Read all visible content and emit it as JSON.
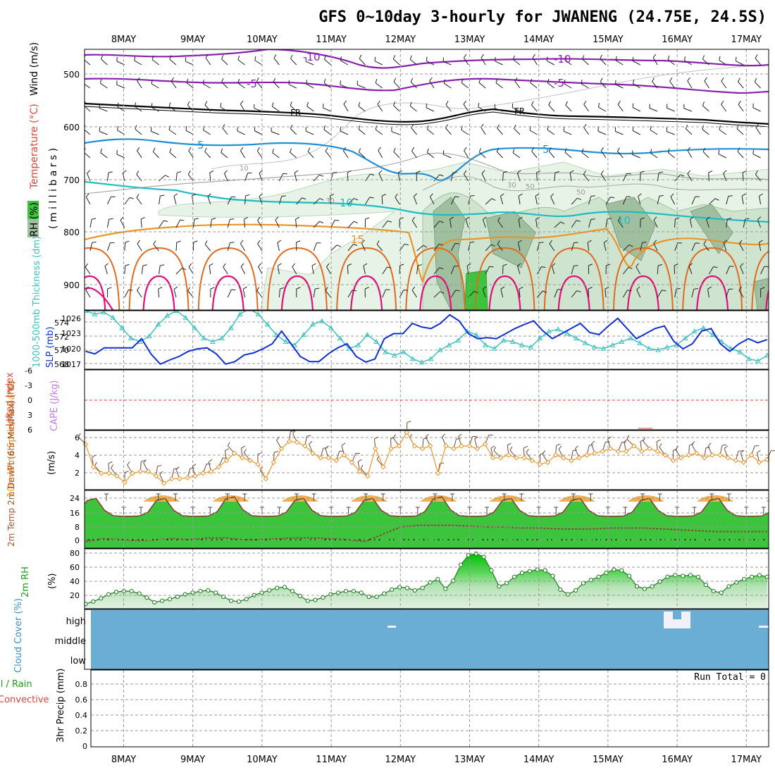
{
  "title": "GFS 0~10day 3-hourly for JWANENG (24.75E, 24.5S)",
  "dates": [
    "8MAY",
    "9MAY",
    "10MAY",
    "11MAY",
    "12MAY",
    "13MAY",
    "14MAY",
    "15MAY",
    "16MAY",
    "17MAY"
  ],
  "colors": {
    "purple": "#8a1fb0",
    "black": "#000000",
    "blue": "#1f8fd6",
    "teal": "#1fbcc4",
    "orange": "#e8962a",
    "darkorange": "#e26a1e",
    "magenta": "#e0117a",
    "gray": "#a8a8a8",
    "slp": "#1030d0",
    "thick": "#3fc0c0",
    "wind10": "#e8962a",
    "cloud": "#6aaed6",
    "rh_fill": "#4cd44c",
    "rh_light": "#dcefdc"
  },
  "panels": {
    "upper": {
      "ylabel_rh": "RH (%)",
      "ylabel_temp": "Temperature (°C)",
      "ylabel_wind": "Wind (m/s)",
      "ylabel_mb": "( m i l l i b a r s )",
      "ticks": [
        "500",
        "600",
        "700",
        "800",
        "900"
      ],
      "contour_labels": [
        "-10",
        "-5",
        "FR",
        "5",
        "10",
        "15",
        "-10",
        "-5",
        "FR",
        "5",
        "10",
        "10",
        "30",
        "50",
        "30",
        "50"
      ]
    },
    "slp": {
      "ylabel_thick": "1000-500mb Thickness (dm)",
      "ylabel_slp": "SLP (mb)",
      "left_ticks": [
        "574",
        "572",
        "570",
        "568"
      ],
      "right_ticks": [
        "1026",
        "1023",
        "1020",
        "1017"
      ]
    },
    "cape": {
      "ylabel_li": "Lifted Index",
      "ylabel_cape": "CAPE (J/kg)",
      "ticks": [
        "-6",
        "-3",
        "0",
        "3",
        "6"
      ]
    },
    "wind10": {
      "ylabel": "10m Wind Speed & Barbs",
      "unit": "(m/s)",
      "ticks": [
        "6",
        "4",
        "2"
      ]
    },
    "temp": {
      "ylabel": "2m Temp 2m DewPt (6hr Min/Max) (°C)",
      "ticks": [
        "24",
        "16",
        "8",
        "0"
      ]
    },
    "rh": {
      "ylabel": "2m RH",
      "unit": "(%)",
      "ticks": [
        "80",
        "60",
        "40",
        "20"
      ]
    },
    "cloud": {
      "ylabel": "Cloud Cover (%)",
      "levels": [
        "high",
        "middle",
        "low"
      ]
    },
    "precip": {
      "ylabel_left": "Total / Rain",
      "ylabel_conv": "Convective",
      "ylabel": "3hr Precip (mm)",
      "ticks": [
        "0.8",
        "0.6",
        "0.4",
        "0.2",
        "0"
      ],
      "run_total": "Run Total = 0"
    }
  },
  "chart_data": [
    {
      "type": "line",
      "title": "1000-500mb Thickness (dm) and SLP (mb)",
      "x": "3-hourly steps from 7.5 MAY to 17.3 MAY",
      "series": [
        {
          "name": "SLP (mb)",
          "values": [
            1019.5,
            1019.0,
            1020.2,
            1020.2,
            1020.2,
            1020.2,
            1022.0,
            1019.0,
            1017.0,
            1017.8,
            1018.5,
            1019.5,
            1020.0,
            1020.2,
            1019.0,
            1017.0,
            1017.5,
            1018.8,
            1019.2,
            1020.0,
            1021.0,
            1023.5,
            1021.0,
            1018.5,
            1017.5,
            1017.5,
            1019.0,
            1020.2,
            1021.0,
            1018.5,
            1017.4,
            1018.0,
            1022.0,
            1023.0,
            1023.0,
            1025.0,
            1024.3,
            1024.0,
            1025.0,
            1026.7,
            1025.5,
            1023.0,
            1022.0,
            1022.2,
            1022.0,
            1023.0,
            1024.0,
            1024.8,
            1025.5,
            1023.5,
            1022.0,
            1023.0,
            1024.0,
            1025.0,
            1023.2,
            1022.8,
            1024.5,
            1026.0,
            1024.0,
            1022.0,
            1023.0,
            1024.0,
            1024.5,
            1021.5,
            1020.0,
            1021.0,
            1023.5,
            1024.0,
            1021.0,
            1019.5,
            1021.0,
            1022.0,
            1021.2,
            1021.8
          ]
        },
        {
          "name": "1000-500mb Thickness (dm)",
          "values": [
            575.5,
            575.0,
            575.3,
            574.5,
            573.0,
            571.5,
            571.0,
            571.8,
            573.5,
            574.8,
            575.5,
            574.5,
            573.0,
            571.5,
            571.0,
            571.5,
            573.0,
            575.0,
            575.8,
            575.0,
            573.5,
            572.0,
            571.0,
            570.5,
            572.0,
            573.5,
            574.0,
            573.0,
            571.5,
            570.0,
            570.5,
            572.0,
            571.0,
            569.5,
            569.0,
            569.5,
            568.5,
            568.0,
            568.5,
            569.8,
            570.5,
            571.2,
            572.5,
            572.0,
            570.5,
            570.0,
            571.2,
            571.0,
            570.5,
            570.2,
            571.5,
            572.5,
            572.8,
            572.2,
            571.5,
            570.8,
            570.2,
            570.0,
            570.5,
            571.0,
            571.5,
            570.8,
            570.0,
            569.8,
            570.2,
            570.5,
            571.5,
            572.5,
            573.0,
            572.0,
            571.0,
            570.0,
            569.5,
            568.5,
            568.2,
            569.0
          ]
        }
      ],
      "ylim_left": [
        567,
        575.5
      ],
      "ylim_right": [
        1016,
        1027.5
      ]
    },
    {
      "type": "line",
      "title": "10m Wind Speed (m/s)",
      "series": [
        {
          "name": "10m Wind Speed",
          "values": [
            5.0,
            2.5,
            1.8,
            1.8,
            1.5,
            0.8,
            1.8,
            2.0,
            2.0,
            1.5,
            0.7,
            1.2,
            1.2,
            1.3,
            1.5,
            1.8,
            2.0,
            2.5,
            3.2,
            4.0,
            3.5,
            3.2,
            2.8,
            1.2,
            3.0,
            4.5,
            5.3,
            5.2,
            4.8,
            4.0,
            3.5,
            3.5,
            3.2,
            3.8,
            3.0,
            2.0,
            1.5,
            4.5,
            2.5,
            4.5,
            4.8,
            6.3,
            4.8,
            4.5,
            4.8,
            1.8,
            4.8,
            4.5,
            4.8,
            4.8,
            4.5,
            5.0,
            3.5,
            3.5,
            3.8,
            3.5,
            3.5,
            3.2,
            2.8,
            3.0,
            3.8,
            3.5,
            3.2,
            3.5,
            3.8,
            4.0,
            4.2,
            4.5,
            4.2,
            4.2,
            4.8,
            4.2,
            4.5,
            4.2,
            3.8,
            3.2,
            3.5,
            3.8,
            4.0,
            3.5,
            3.8,
            3.8,
            3.5,
            3.2,
            3.0,
            3.8,
            3.0,
            3.3
          ]
        }
      ],
      "ylim": [
        0,
        6.5
      ]
    },
    {
      "type": "area",
      "title": "2m Temp and 2m DewPt (°C)",
      "series": [
        {
          "name": "2m Temp max",
          "values": [
            24,
            25,
            24,
            24,
            25,
            24,
            24,
            24,
            24,
            25,
            24,
            24,
            24,
            23,
            24,
            24,
            24,
            24,
            24,
            23
          ]
        },
        {
          "name": "2m DewPt",
          "values": [
            -1,
            0.5,
            0,
            -0.5,
            0,
            0.5,
            0,
            1,
            1,
            0,
            0,
            0.5,
            1,
            1,
            0.5,
            0,
            -1,
            3,
            7,
            8,
            8,
            8,
            7.5,
            7,
            7,
            6.5,
            6.5,
            6,
            6,
            6,
            6.5,
            6.5,
            6.5,
            6,
            5.5,
            5,
            4.5,
            4.5,
            4.5,
            4.5
          ]
        }
      ],
      "ylim": [
        -4,
        28
      ]
    },
    {
      "type": "area",
      "title": "2m RH (%)",
      "series": [
        {
          "name": "2m RH",
          "values": [
            16,
            19,
            23,
            28,
            31,
            32,
            32,
            29,
            24,
            18,
            20,
            22,
            25,
            28,
            30,
            32,
            33,
            30,
            25,
            20,
            19,
            22,
            27,
            30,
            33,
            36,
            37,
            32,
            26,
            20,
            21,
            24,
            28,
            30,
            32,
            32,
            30,
            25,
            25,
            29,
            34,
            37,
            36,
            33,
            36,
            43,
            47,
            35,
            45,
            65,
            77,
            79,
            75,
            58,
            38,
            42,
            50,
            55,
            57,
            59,
            58,
            51,
            34,
            28,
            33,
            42,
            46,
            50,
            55,
            59,
            58,
            51,
            38,
            35,
            38,
            44,
            50,
            52,
            51,
            52,
            50,
            40,
            32,
            30,
            38,
            43,
            47,
            50,
            52,
            50
          ]
        }
      ],
      "ylim": [
        10,
        85
      ]
    },
    {
      "type": "heatmap",
      "title": "Cloud Cover (%)",
      "categories": [
        "high",
        "middle",
        "low"
      ],
      "note": "Nearly all cloud cover values at 0 (solid blue), small high cloud patches near 12MAY, 16MAY and 17MAY"
    },
    {
      "type": "bar",
      "title": "3hr Precip (mm)",
      "values": [
        0
      ],
      "ylim": [
        0,
        0.95
      ],
      "annotation": "Run Total = 0"
    }
  ]
}
